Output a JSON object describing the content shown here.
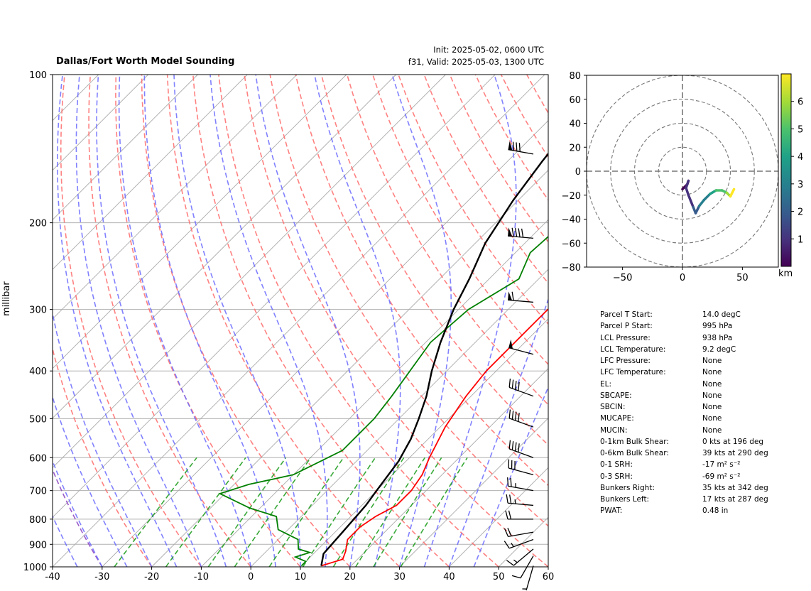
{
  "header": {
    "title": "Dallas/Fort Worth Model Sounding",
    "init": "Init: 2025-05-02, 0600 UTC",
    "valid": "f31, Valid: 2025-05-03, 1300 UTC"
  },
  "chart_data": [
    {
      "type": "line",
      "name": "skew-t",
      "ylabel": "millibar",
      "xlim": [
        -40,
        60
      ],
      "ylim": [
        1000,
        100
      ],
      "y_scale": "log",
      "x_ticks": [
        -40,
        -30,
        -20,
        -10,
        0,
        10,
        20,
        30,
        40,
        50,
        60
      ],
      "y_ticks": [
        1000,
        900,
        800,
        700,
        600,
        500,
        400,
        300,
        200,
        100
      ],
      "grid": true,
      "series": [
        {
          "key": "temperature",
          "color": "#ff0000",
          "points": [
            [
              14,
              995
            ],
            [
              17,
              965
            ],
            [
              16,
              930
            ],
            [
              14,
              880
            ],
            [
              14,
              830
            ],
            [
              15,
              790
            ],
            [
              17,
              750
            ],
            [
              17,
              700
            ],
            [
              16,
              650
            ],
            [
              14,
              600
            ],
            [
              11,
              520
            ],
            [
              9,
              450
            ],
            [
              8,
              400
            ],
            [
              8,
              330
            ],
            [
              8,
              300
            ],
            [
              10,
              260
            ],
            [
              13,
              230
            ],
            [
              18,
              200
            ],
            [
              25,
              165
            ],
            [
              32,
              130
            ],
            [
              38,
              100
            ]
          ]
        },
        {
          "key": "dewpoint",
          "color": "#008000",
          "points": [
            [
              10,
              995
            ],
            [
              10,
              975
            ],
            [
              7,
              955
            ],
            [
              9,
              935
            ],
            [
              6,
              920
            ],
            [
              4,
              880
            ],
            [
              -2,
              840
            ],
            [
              -5,
              790
            ],
            [
              -12,
              760
            ],
            [
              -21,
              710
            ],
            [
              -17,
              680
            ],
            [
              -10,
              650
            ],
            [
              -5,
              580
            ],
            [
              -5,
              500
            ],
            [
              -6,
              450
            ],
            [
              -9,
              350
            ],
            [
              -8,
              300
            ],
            [
              -4,
              260
            ],
            [
              -7,
              230
            ],
            [
              -6,
              190
            ],
            [
              -8,
              150
            ],
            [
              -3,
              120
            ],
            [
              6,
              100
            ]
          ]
        },
        {
          "key": "parcel",
          "color": "#000000",
          "points": [
            [
              14,
              995
            ],
            [
              12,
              940
            ],
            [
              11.5,
              850
            ],
            [
              10.8,
              750
            ],
            [
              10,
              700
            ],
            [
              8.5,
              610
            ],
            [
              6.5,
              550
            ],
            [
              4,
              500
            ],
            [
              1,
              450
            ],
            [
              -3,
              400
            ],
            [
              -7,
              350
            ],
            [
              -11,
              300
            ],
            [
              -14,
              260
            ],
            [
              -18,
              220
            ],
            [
              -21,
              180
            ],
            [
              -23,
              150
            ],
            [
              -25,
              120
            ],
            [
              -26,
              100
            ]
          ]
        }
      ],
      "wind_barbs": [
        {
          "pressure": 995,
          "speed_kt": 5,
          "dir_deg": 196
        },
        {
          "pressure": 950,
          "speed_kt": 10,
          "dir_deg": 210
        },
        {
          "pressure": 920,
          "speed_kt": 15,
          "dir_deg": 230
        },
        {
          "pressure": 880,
          "speed_kt": 15,
          "dir_deg": 250
        },
        {
          "pressure": 850,
          "speed_kt": 20,
          "dir_deg": 260
        },
        {
          "pressure": 800,
          "speed_kt": 20,
          "dir_deg": 270
        },
        {
          "pressure": 750,
          "speed_kt": 25,
          "dir_deg": 275
        },
        {
          "pressure": 700,
          "speed_kt": 25,
          "dir_deg": 280
        },
        {
          "pressure": 650,
          "speed_kt": 30,
          "dir_deg": 285
        },
        {
          "pressure": 600,
          "speed_kt": 40,
          "dir_deg": 290
        },
        {
          "pressure": 520,
          "speed_kt": 40,
          "dir_deg": 290
        },
        {
          "pressure": 450,
          "speed_kt": 40,
          "dir_deg": 290
        },
        {
          "pressure": 370,
          "speed_kt": 50,
          "dir_deg": 285
        },
        {
          "pressure": 290,
          "speed_kt": 60,
          "dir_deg": 275
        },
        {
          "pressure": 215,
          "speed_kt": 90,
          "dir_deg": 275
        },
        {
          "pressure": 145,
          "speed_kt": 80,
          "dir_deg": 280
        }
      ],
      "reference_lines": {
        "dry_adiabats": "red dashed",
        "moist_adiabats": "blue dashed",
        "mixing_ratio": "green dashed",
        "isotherms": "gray solid",
        "zero_isotherm_highlight": "purple dashed"
      }
    },
    {
      "type": "line",
      "name": "hodograph",
      "xlim": [
        -80,
        80
      ],
      "ylim": [
        -80,
        80
      ],
      "x_ticks": [
        -50,
        0,
        50
      ],
      "y_ticks": [
        -80,
        -60,
        -40,
        -20,
        0,
        20,
        40,
        60,
        80
      ],
      "rings": [
        20,
        40,
        60,
        80
      ],
      "colorbar": {
        "label": "km",
        "ticks": [
          1,
          2,
          3,
          4,
          5,
          6
        ],
        "range": [
          0,
          7
        ],
        "colormap": "viridis"
      },
      "points": [
        [
          0,
          -15
        ],
        [
          2,
          -13
        ],
        [
          4,
          -11
        ],
        [
          5,
          -8
        ],
        [
          3,
          -14
        ],
        [
          5,
          -20
        ],
        [
          7,
          -25
        ],
        [
          9,
          -30
        ],
        [
          11,
          -35
        ],
        [
          14,
          -29
        ],
        [
          18,
          -24
        ],
        [
          23,
          -19
        ],
        [
          28,
          -16
        ],
        [
          33,
          -16
        ],
        [
          37,
          -18
        ],
        [
          40,
          -21
        ],
        [
          43,
          -15
        ]
      ],
      "heights_km": [
        0,
        0.1,
        0.2,
        0.3,
        0.5,
        0.8,
        1.1,
        1.4,
        1.8,
        2.3,
        2.8,
        3.4,
        4.0,
        4.7,
        5.4,
        6.0,
        6.8
      ]
    }
  ],
  "parameters": [
    {
      "label": "Parcel T Start:",
      "value": "14.0 degC"
    },
    {
      "label": "Parcel P Start:",
      "value": "995 hPa"
    },
    {
      "label": "LCL Pressure:",
      "value": "938 hPa"
    },
    {
      "label": "LCL Temperature:",
      "value": "9.2 degC"
    },
    {
      "label": "LFC Pressure:",
      "value": "None"
    },
    {
      "label": "LFC Temperature:",
      "value": "None"
    },
    {
      "label": "EL:",
      "value": "None"
    },
    {
      "label": "SBCAPE:",
      "value": "None"
    },
    {
      "label": "SBCIN:",
      "value": "None"
    },
    {
      "label": "MUCAPE:",
      "value": "None"
    },
    {
      "label": "MUCIN:",
      "value": "None"
    },
    {
      "label": "0-1km Bulk Shear:",
      "value": "0 kts at 196 deg"
    },
    {
      "label": "0-6km Bulk Shear:",
      "value": "39 kts at 290 deg"
    },
    {
      "label": "0-1 SRH:",
      "value": "-17 m² s⁻²"
    },
    {
      "label": "0-3 SRH:",
      "value": "-69 m² s⁻²"
    },
    {
      "label": "Bunkers Right:",
      "value": "35 kts at 342 deg"
    },
    {
      "label": "Bunkers Left:",
      "value": "17 kts at 287 deg"
    },
    {
      "label": "PWAT:",
      "value": "0.48 in"
    }
  ]
}
